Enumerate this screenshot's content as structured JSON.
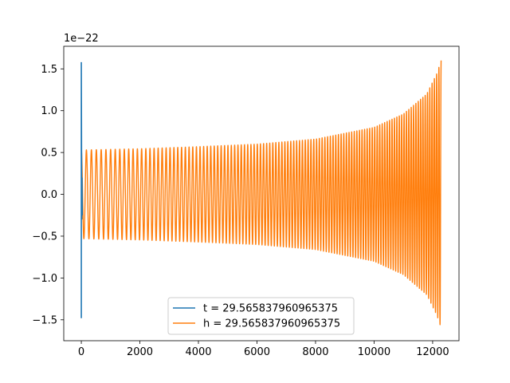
{
  "chart_data": {
    "type": "line",
    "title": "",
    "xlabel": "",
    "ylabel": "",
    "offset_label": "1e−22",
    "xlim": [
      -600,
      12900
    ],
    "ylim": [
      -1.75,
      1.77
    ],
    "grid": false,
    "legend_position": "lower center",
    "x_ticks": [
      {
        "value": 0,
        "label": "0"
      },
      {
        "value": 2000,
        "label": "2000"
      },
      {
        "value": 4000,
        "label": "4000"
      },
      {
        "value": 6000,
        "label": "6000"
      },
      {
        "value": 8000,
        "label": "8000"
      },
      {
        "value": 10000,
        "label": "10000"
      },
      {
        "value": 12000,
        "label": "12000"
      }
    ],
    "y_ticks": [
      {
        "value": 1.5,
        "label": "1.5"
      },
      {
        "value": 1.0,
        "label": "1.0"
      },
      {
        "value": 0.5,
        "label": "0.5"
      },
      {
        "value": 0.0,
        "label": "0.0"
      },
      {
        "value": -0.5,
        "label": "−0.5"
      },
      {
        "value": -1.0,
        "label": "−1.0"
      },
      {
        "value": -1.5,
        "label": "−1.5"
      }
    ],
    "series": [
      {
        "name": "t = 29.565837960965375",
        "color": "#1f77b4",
        "points": [
          [
            0,
            -1.48
          ],
          [
            0,
            1.58
          ],
          [
            8,
            0.53
          ],
          [
            16,
            -0.3
          ],
          [
            24,
            0.2
          ],
          [
            32,
            -0.25
          ]
        ]
      },
      {
        "name": "h = 29.565837960965375",
        "color": "#ff7f0e",
        "chirp": {
          "x_start": 0,
          "x_end": 12290,
          "amplitude_start": 0.53,
          "amplitude_end": 1.6,
          "cycles_start": 70,
          "cycles_end": 160,
          "envelope_points": [
            [
              0,
              0.53
            ],
            [
              2000,
              0.545
            ],
            [
              4000,
              0.57
            ],
            [
              6000,
              0.6
            ],
            [
              8000,
              0.66
            ],
            [
              10000,
              0.8
            ],
            [
              11000,
              0.96
            ],
            [
              11800,
              1.2
            ],
            [
              12150,
              1.45
            ],
            [
              12290,
              1.6
            ]
          ]
        }
      }
    ]
  }
}
